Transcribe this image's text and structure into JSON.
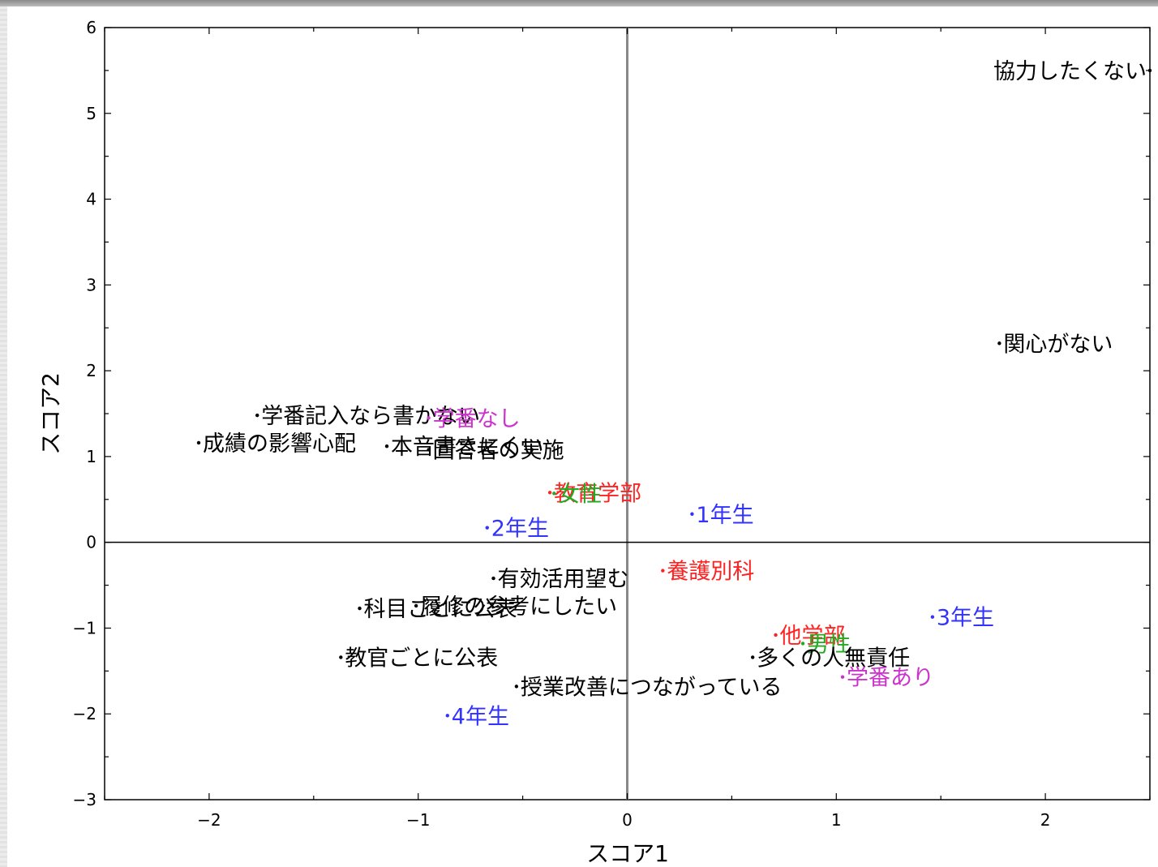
{
  "chart_data": {
    "type": "scatter",
    "xlabel": "スコア1",
    "ylabel": "スコア2",
    "xlim": [
      -2.5,
      2.5
    ],
    "ylim": [
      -3,
      6
    ],
    "xticks": [
      -2,
      -1,
      0,
      1,
      2
    ],
    "yticks": [
      -3,
      -2,
      -1,
      0,
      1,
      2,
      3,
      4,
      5,
      6
    ],
    "reference_lines": {
      "x": 0,
      "y": 0
    },
    "grid": false,
    "colors": {
      "black": "#000000",
      "red": "#ff2222",
      "green": "#22aa22",
      "blue": "#3333ff",
      "magenta": "#cc33cc"
    },
    "points": [
      {
        "label": "協力したくない",
        "x": 2.5,
        "y": 5.5,
        "color": "black"
      },
      {
        "label": "関心がない",
        "x": 1.78,
        "y": 2.32,
        "color": "black"
      },
      {
        "label": "学番記入なら書かない",
        "x": -1.77,
        "y": 1.48,
        "color": "black"
      },
      {
        "label": "学番なし",
        "x": -0.95,
        "y": 1.45,
        "color": "magenta"
      },
      {
        "label": "成績の影響心配",
        "x": -2.05,
        "y": 1.16,
        "color": "black"
      },
      {
        "label": "本音書きにくい",
        "x": -1.15,
        "y": 1.12,
        "color": "black"
      },
      {
        "label": "回答者の実施",
        "x": -0.95,
        "y": 1.08,
        "color": "black"
      },
      {
        "label": "教育学部",
        "x": -0.37,
        "y": 0.58,
        "color": "red"
      },
      {
        "label": "女性",
        "x": -0.35,
        "y": 0.57,
        "color": "green"
      },
      {
        "label": "1年生",
        "x": 0.31,
        "y": 0.33,
        "color": "blue"
      },
      {
        "label": "2年生",
        "x": -0.67,
        "y": 0.17,
        "color": "blue"
      },
      {
        "label": "有効活用望む",
        "x": -0.64,
        "y": -0.42,
        "color": "black"
      },
      {
        "label": "養護別科",
        "x": 0.17,
        "y": -0.33,
        "color": "red"
      },
      {
        "label": "科目ごとに公表",
        "x": -1.28,
        "y": -0.77,
        "color": "black"
      },
      {
        "label": "履修の参考にしたい",
        "x": -1.01,
        "y": -0.74,
        "color": "black"
      },
      {
        "label": "3年生",
        "x": 1.46,
        "y": -0.87,
        "color": "blue"
      },
      {
        "label": "他学部",
        "x": 0.71,
        "y": -1.08,
        "color": "red"
      },
      {
        "label": "男性",
        "x": 0.84,
        "y": -1.18,
        "color": "green"
      },
      {
        "label": "多くの人無責任",
        "x": 0.6,
        "y": -1.34,
        "color": "black"
      },
      {
        "label": "教官ごとに公表",
        "x": -1.37,
        "y": -1.34,
        "color": "black"
      },
      {
        "label": "学番あり",
        "x": 1.03,
        "y": -1.57,
        "color": "magenta"
      },
      {
        "label": "授業改善につながっている",
        "x": -0.53,
        "y": -1.68,
        "color": "black"
      },
      {
        "label": "4年生",
        "x": -0.86,
        "y": -2.02,
        "color": "blue"
      }
    ]
  }
}
